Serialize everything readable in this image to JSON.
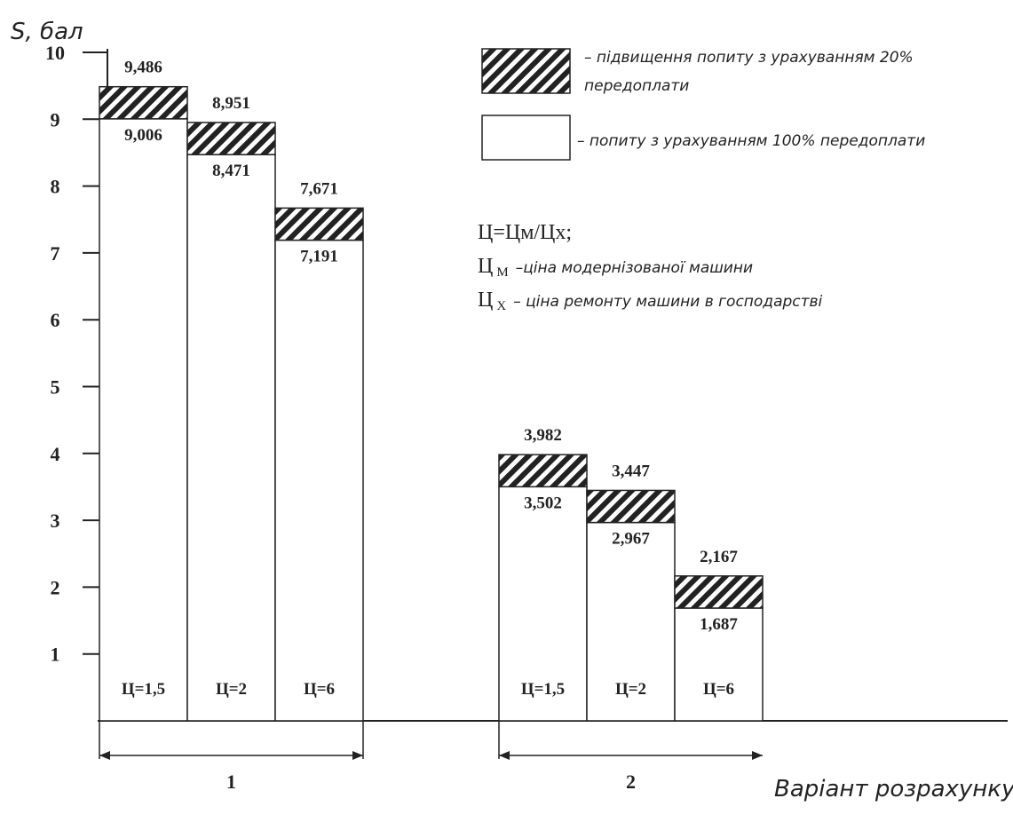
{
  "chart_data": {
    "type": "bar",
    "ylabel": "S, бал",
    "xlabel": "Варіант розрахунку",
    "ylim": [
      0,
      10.6
    ],
    "yticks": [
      1,
      2,
      3,
      4,
      5,
      6,
      7,
      8,
      9,
      10
    ],
    "groups": [
      {
        "label": "1",
        "bars": [
          {
            "category": "Ц=1,5",
            "base": 9.006,
            "total": 9.486,
            "base_label": "9,006",
            "total_label": "9,486"
          },
          {
            "category": "Ц=2",
            "base": 8.471,
            "total": 8.951,
            "base_label": "8,471",
            "total_label": "8,951"
          },
          {
            "category": "Ц=6",
            "base": 7.191,
            "total": 7.671,
            "base_label": "7,191",
            "total_label": "7,671"
          }
        ]
      },
      {
        "label": "2",
        "bars": [
          {
            "category": "Ц=1,5",
            "base": 3.502,
            "total": 3.982,
            "base_label": "3,502",
            "total_label": "3,982"
          },
          {
            "category": "Ц=2",
            "base": 2.967,
            "total": 3.447,
            "base_label": "2,967",
            "total_label": "3,447"
          },
          {
            "category": "Ц=6",
            "base": 1.687,
            "total": 2.167,
            "base_label": "1,687",
            "total_label": "2,167"
          }
        ]
      }
    ],
    "legend": {
      "hatched": [
        "– підвищення попиту з урахуванням 20%",
        "передоплати"
      ],
      "plain": "– попиту з урахуванням 100% передоплати"
    },
    "notes": {
      "formula": "Ц=Цм/Цх;",
      "line_m_symbol": "Ц",
      "line_m_sub": "М",
      "line_m_desc": "–ціна модернізованої машини",
      "line_x_symbol": "Ц",
      "line_x_sub": "Х",
      "line_x_desc": "– ціна ремонту машини в господарстві"
    },
    "colors": {
      "bar_fill": "#ffffff",
      "stroke": "#222222",
      "hatch": "#222222"
    }
  }
}
